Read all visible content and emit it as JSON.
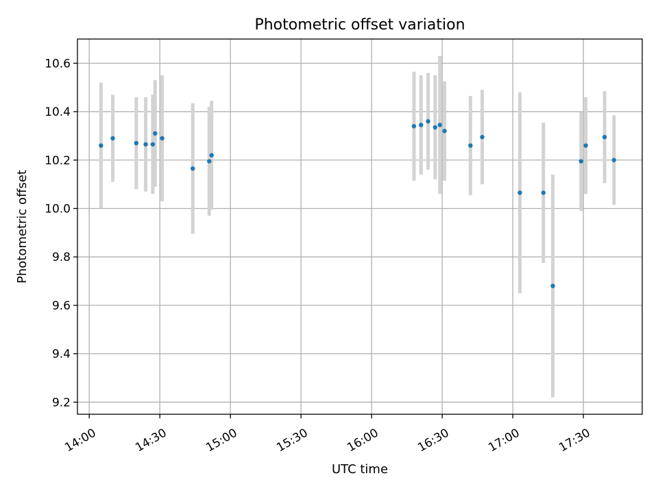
{
  "chart_data": {
    "type": "scatter",
    "title": "Photometric offset variation",
    "xlabel": "UTC time",
    "ylabel": "Photometric offset",
    "x_axis": "time (HH:MM UTC)",
    "xlim": [
      "13:55",
      "17:55"
    ],
    "ylim": [
      9.15,
      10.7
    ],
    "xticks": [
      "14:00",
      "14:30",
      "15:00",
      "15:30",
      "16:00",
      "16:30",
      "17:00",
      "17:30"
    ],
    "yticks": [
      "9.2",
      "9.4",
      "9.6",
      "9.8",
      "10.0",
      "10.2",
      "10.4",
      "10.6"
    ],
    "grid": true,
    "colors": {
      "point": "#1f77b4",
      "error_bar": "#d3d3d3"
    },
    "points": [
      {
        "x": "14:05",
        "y": 10.26,
        "err": 0.26
      },
      {
        "x": "14:10",
        "y": 10.29,
        "err": 0.18
      },
      {
        "x": "14:20",
        "y": 10.27,
        "err": 0.19
      },
      {
        "x": "14:24",
        "y": 10.265,
        "err": 0.195
      },
      {
        "x": "14:27",
        "y": 10.265,
        "err": 0.205
      },
      {
        "x": "14:28",
        "y": 10.31,
        "err": 0.22
      },
      {
        "x": "14:31",
        "y": 10.29,
        "err": 0.26
      },
      {
        "x": "14:44",
        "y": 10.165,
        "err": 0.27
      },
      {
        "x": "14:51",
        "y": 10.195,
        "err": 0.225
      },
      {
        "x": "14:52",
        "y": 10.22,
        "err": 0.225
      },
      {
        "x": "16:18",
        "y": 10.34,
        "err": 0.225
      },
      {
        "x": "16:21",
        "y": 10.345,
        "err": 0.205
      },
      {
        "x": "16:24",
        "y": 10.36,
        "err": 0.2
      },
      {
        "x": "16:27",
        "y": 10.335,
        "err": 0.215
      },
      {
        "x": "16:29",
        "y": 10.345,
        "err": 0.285
      },
      {
        "x": "16:31",
        "y": 10.32,
        "err": 0.205
      },
      {
        "x": "16:42",
        "y": 10.26,
        "err": 0.205
      },
      {
        "x": "16:47",
        "y": 10.295,
        "err": 0.195
      },
      {
        "x": "17:03",
        "y": 10.065,
        "err": 0.415
      },
      {
        "x": "17:13",
        "y": 10.065,
        "err": 0.29
      },
      {
        "x": "17:17",
        "y": 9.68,
        "err": 0.46
      },
      {
        "x": "17:29",
        "y": 10.195,
        "err": 0.205
      },
      {
        "x": "17:31",
        "y": 10.26,
        "err": 0.2
      },
      {
        "x": "17:39",
        "y": 10.295,
        "err": 0.19
      },
      {
        "x": "17:43",
        "y": 10.2,
        "err": 0.185
      }
    ]
  }
}
